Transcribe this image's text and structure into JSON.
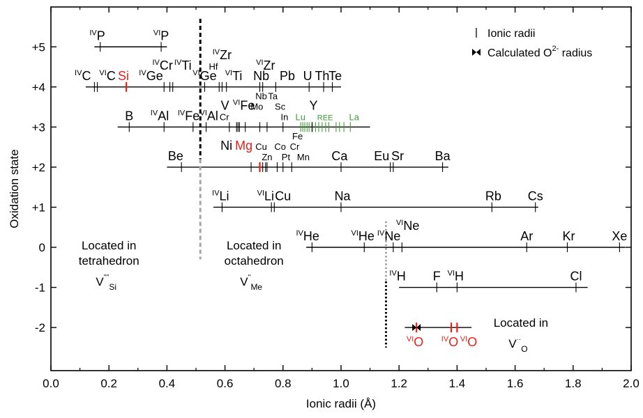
{
  "chart_data": {
    "type": "scatter",
    "xlabel": "Ionic radii (Å)",
    "ylabel": "Oxidation state",
    "xlim": [
      0.0,
      2.0
    ],
    "ylim": [
      -2.95,
      6.0
    ],
    "x_ticks": [
      0.0,
      0.2,
      0.4,
      0.6,
      0.8,
      1.0,
      1.2,
      1.4,
      1.6,
      1.8,
      2.0
    ],
    "x_tick_labels": [
      "0.0",
      "0.2",
      "0.4",
      "0.6",
      "0.8",
      "1.0",
      "1.2",
      "1.4",
      "1.6",
      "1.8",
      "2.0"
    ],
    "y_ticks": [
      5,
      4,
      3,
      2,
      1,
      0,
      -1,
      -2
    ],
    "y_tick_labels": [
      "+5",
      "+4",
      "+3",
      "+2",
      "+1",
      "0",
      "-1",
      "-2"
    ],
    "colors": {
      "black": "#000000",
      "red": "#e8201a",
      "green": "#3f9e38",
      "gray": "#a6a6a6"
    },
    "legend": {
      "position": "top-right",
      "items": [
        {
          "marker": "tick",
          "label": "Ionic radii"
        },
        {
          "marker": "bowtie",
          "label_main": "Calculated O",
          "label_sup": "2-",
          "label_end": " radius"
        }
      ]
    },
    "levels": [
      {
        "state": 5,
        "range": [
          0.15,
          0.4
        ]
      },
      {
        "state": 4,
        "range": [
          0.12,
          1.0
        ]
      },
      {
        "state": 3,
        "range": [
          0.23,
          1.1
        ]
      },
      {
        "state": 2,
        "range": [
          0.4,
          1.37
        ]
      },
      {
        "state": 1,
        "range": [
          0.56,
          1.68
        ]
      },
      {
        "state": 0,
        "range": [
          0.88,
          1.98
        ]
      },
      {
        "state": -1,
        "range": [
          1.2,
          1.85
        ]
      },
      {
        "state": -2,
        "range": [
          1.22,
          1.45
        ]
      }
    ],
    "radii": [
      {
        "state": 5,
        "r": 0.17
      },
      {
        "state": 5,
        "r": 0.38
      },
      {
        "state": 4,
        "r": 0.15
      },
      {
        "state": 4,
        "r": 0.16
      },
      {
        "state": 4,
        "r": 0.26,
        "color": "red"
      },
      {
        "state": 4,
        "r": 0.39
      },
      {
        "state": 4,
        "r": 0.41
      },
      {
        "state": 4,
        "r": 0.42
      },
      {
        "state": 4,
        "r": 0.53
      },
      {
        "state": 4,
        "r": 0.58
      },
      {
        "state": 4,
        "r": 0.59
      },
      {
        "state": 4,
        "r": 0.605
      },
      {
        "state": 4,
        "r": 0.72
      },
      {
        "state": 4,
        "r": 0.73
      },
      {
        "state": 4,
        "r": 0.775
      },
      {
        "state": 4,
        "r": 0.89
      },
      {
        "state": 4,
        "r": 0.94
      },
      {
        "state": 4,
        "r": 0.97
      },
      {
        "state": 3,
        "r": 0.27
      },
      {
        "state": 3,
        "r": 0.39
      },
      {
        "state": 3,
        "r": 0.49
      },
      {
        "state": 3,
        "r": 0.535
      },
      {
        "state": 3,
        "r": 0.615
      },
      {
        "state": 3,
        "r": 0.64
      },
      {
        "state": 3,
        "r": 0.645
      },
      {
        "state": 3,
        "r": 0.65
      },
      {
        "state": 3,
        "r": 0.67
      },
      {
        "state": 3,
        "r": 0.72
      },
      {
        "state": 3,
        "r": 0.745
      },
      {
        "state": 3,
        "r": 0.8
      },
      {
        "state": 3,
        "r": 0.861,
        "color": "green"
      },
      {
        "state": 3,
        "r": 0.868,
        "color": "green"
      },
      {
        "state": 3,
        "r": 0.875,
        "color": "green"
      },
      {
        "state": 3,
        "r": 0.883,
        "color": "green"
      },
      {
        "state": 3,
        "r": 0.89,
        "color": "green"
      },
      {
        "state": 3,
        "r": 0.901,
        "color": "green"
      },
      {
        "state": 3,
        "r": 0.912,
        "color": "green"
      },
      {
        "state": 3,
        "r": 0.923,
        "color": "green"
      },
      {
        "state": 3,
        "r": 0.935,
        "color": "green"
      },
      {
        "state": 3,
        "r": 0.947,
        "color": "green"
      },
      {
        "state": 3,
        "r": 0.958,
        "color": "green"
      },
      {
        "state": 3,
        "r": 0.983,
        "color": "green"
      },
      {
        "state": 3,
        "r": 0.995,
        "color": "green"
      },
      {
        "state": 3,
        "r": 1.01,
        "color": "green"
      },
      {
        "state": 3,
        "r": 1.032,
        "color": "green"
      },
      {
        "state": 3,
        "r": 0.9
      },
      {
        "state": 2,
        "r": 0.45
      },
      {
        "state": 2,
        "r": 0.69
      },
      {
        "state": 2,
        "r": 0.72,
        "color": "red"
      },
      {
        "state": 2,
        "r": 0.73
      },
      {
        "state": 2,
        "r": 0.74
      },
      {
        "state": 2,
        "r": 0.745
      },
      {
        "state": 2,
        "r": 0.78
      },
      {
        "state": 2,
        "r": 0.8
      },
      {
        "state": 2,
        "r": 0.83
      },
      {
        "state": 2,
        "r": 1.0
      },
      {
        "state": 2,
        "r": 1.17
      },
      {
        "state": 2,
        "r": 1.18
      },
      {
        "state": 2,
        "r": 1.35
      },
      {
        "state": 1,
        "r": 0.59
      },
      {
        "state": 1,
        "r": 0.76
      },
      {
        "state": 1,
        "r": 0.77
      },
      {
        "state": 1,
        "r": 1.0
      },
      {
        "state": 1,
        "r": 1.52
      },
      {
        "state": 1,
        "r": 1.67
      },
      {
        "state": 0,
        "r": 0.9
      },
      {
        "state": 0,
        "r": 1.08
      },
      {
        "state": 0,
        "r": 1.18
      },
      {
        "state": 0,
        "r": 1.21
      },
      {
        "state": 0,
        "r": 1.64
      },
      {
        "state": 0,
        "r": 1.78
      },
      {
        "state": 0,
        "r": 1.96
      },
      {
        "state": -1,
        "r": 1.33
      },
      {
        "state": -1,
        "r": 1.4
      },
      {
        "state": -1,
        "r": 1.81
      },
      {
        "state": -2,
        "r": 1.26,
        "color": "red"
      },
      {
        "state": -2,
        "r": 1.38,
        "color": "red"
      },
      {
        "state": -2,
        "r": 1.4,
        "color": "red"
      }
    ],
    "calculated_o2_radius": {
      "state": -2,
      "r": 1.26
    },
    "boundaries": [
      {
        "x": 0.515,
        "y_top": 5.7,
        "y_bottom": -0.3,
        "color_top": "black",
        "color_bottom": "gray",
        "split": 2.2,
        "style": "dashed"
      },
      {
        "x": 1.155,
        "y_top": 0.65,
        "y_bottom": -2.5,
        "color_top": "gray",
        "color_bottom": "black",
        "split": -0.85,
        "style": "dotted"
      }
    ],
    "element_labels": [
      {
        "state": 5,
        "r": 0.16,
        "sup": "IV",
        "text": "P"
      },
      {
        "state": 5,
        "r": 0.38,
        "sup": "VI",
        "text": "P"
      },
      {
        "state": 4,
        "r": 0.11,
        "sup": "IV",
        "text": "C"
      },
      {
        "state": 4,
        "r": 0.195,
        "sup": "VI",
        "text": "C"
      },
      {
        "state": 4,
        "r": 0.25,
        "text": "Si",
        "color": "red"
      },
      {
        "state": 4,
        "r": 0.345,
        "sup": "IV",
        "text": "Ge"
      },
      {
        "state": 4,
        "r": 0.385,
        "sup": "IV",
        "text": "Cr",
        "tier": 1
      },
      {
        "state": 4,
        "r": 0.455,
        "sup": "IV",
        "text": "Ti",
        "tier": 1
      },
      {
        "state": 4,
        "r": 0.53,
        "sup": "VI",
        "text": "Ge"
      },
      {
        "state": 4,
        "r": 0.59,
        "sup": "IV",
        "text": "Zr",
        "tier": 2
      },
      {
        "state": 4,
        "r": 0.56,
        "text": "Hf",
        "small": true,
        "tier": 1
      },
      {
        "state": 4,
        "r": 0.63,
        "sup": "VI",
        "text": "Ti"
      },
      {
        "state": 4,
        "r": 0.725,
        "text": "Nb"
      },
      {
        "state": 4,
        "r": 0.74,
        "sup": "VI",
        "text": "Zr",
        "tier": 1
      },
      {
        "state": 4,
        "r": 0.815,
        "text": "Pb"
      },
      {
        "state": 4,
        "r": 0.885,
        "text": "U"
      },
      {
        "state": 4,
        "r": 0.935,
        "text": "Th"
      },
      {
        "state": 4,
        "r": 0.98,
        "text": "Te"
      },
      {
        "state": 3,
        "r": 0.27,
        "text": "B"
      },
      {
        "state": 3,
        "r": 0.375,
        "sup": "IV",
        "text": "Al"
      },
      {
        "state": 3,
        "r": 0.475,
        "sup": "IV",
        "text": "Fe"
      },
      {
        "state": 3,
        "r": 0.545,
        "sup": "VI",
        "text": "Al"
      },
      {
        "state": 3,
        "r": 0.598,
        "text": "Cr",
        "small": true
      },
      {
        "state": 3,
        "r": 0.6,
        "text": "V",
        "tier": 1
      },
      {
        "state": 3,
        "r": 0.665,
        "sup": "VI",
        "text": "Fe",
        "tier": 1
      },
      {
        "state": 3,
        "r": 0.71,
        "text": "Mo",
        "small": true,
        "tier": 1
      },
      {
        "state": 3,
        "r": 0.725,
        "text": "Nb",
        "small": true,
        "tier": 2
      },
      {
        "state": 3,
        "r": 0.765,
        "text": "Ta",
        "small": true,
        "tier": 2
      },
      {
        "state": 3,
        "r": 0.79,
        "text": "Sc",
        "small": true,
        "tier": 1
      },
      {
        "state": 3,
        "r": 0.805,
        "text": "In",
        "small": true
      },
      {
        "state": 3,
        "r": 0.86,
        "text": "Lu",
        "small": true,
        "color": "green"
      },
      {
        "state": 3,
        "r": 0.905,
        "text": "Y",
        "tier": 1
      },
      {
        "state": 3,
        "r": 0.945,
        "text": "REE",
        "smaller": true,
        "color": "green"
      },
      {
        "state": 3,
        "r": 1.045,
        "text": "La",
        "small": true,
        "color": "green"
      },
      {
        "state": 2,
        "r": 0.43,
        "text": "Be"
      },
      {
        "state": 2,
        "r": 0.605,
        "text": "Ni",
        "tier": 1
      },
      {
        "state": 2,
        "r": 0.665,
        "text": "Mg",
        "color": "red",
        "tier": 1
      },
      {
        "state": 2,
        "r": 0.725,
        "text": "Cu",
        "small": true,
        "tier": 1
      },
      {
        "state": 2,
        "r": 0.745,
        "text": "Zn",
        "small": true
      },
      {
        "state": 2,
        "r": 0.79,
        "text": "Co",
        "small": true,
        "tier": 1
      },
      {
        "state": 2,
        "r": 0.85,
        "text": "Fe",
        "small": true,
        "tier": 2
      },
      {
        "state": 2,
        "r": 0.84,
        "text": "Cr",
        "small": true,
        "tier": 1
      },
      {
        "state": 2,
        "r": 0.81,
        "text": "Pt",
        "small": true
      },
      {
        "state": 2,
        "r": 0.87,
        "text": "Mn",
        "small": true
      },
      {
        "state": 2,
        "r": 0.995,
        "text": "Ca"
      },
      {
        "state": 2,
        "r": 1.14,
        "text": "Eu"
      },
      {
        "state": 2,
        "r": 1.195,
        "text": "Sr"
      },
      {
        "state": 2,
        "r": 1.35,
        "text": "Ba"
      },
      {
        "state": 1,
        "r": 0.585,
        "sup": "IV",
        "text": "Li"
      },
      {
        "state": 1,
        "r": 0.74,
        "sup": "VI",
        "text": "Li"
      },
      {
        "state": 1,
        "r": 0.8,
        "text": "Cu"
      },
      {
        "state": 1,
        "r": 1.005,
        "text": "Na"
      },
      {
        "state": 1,
        "r": 1.525,
        "text": "Rb"
      },
      {
        "state": 1,
        "r": 1.67,
        "text": "Cs"
      },
      {
        "state": 0,
        "r": 0.885,
        "sup": "IV",
        "text": "He"
      },
      {
        "state": 0,
        "r": 1.075,
        "sup": "VI",
        "text": "He"
      },
      {
        "state": 0,
        "r": 1.165,
        "sup": "IV",
        "text": "Ne"
      },
      {
        "state": 0,
        "r": 1.23,
        "sup": "VI",
        "text": "Ne",
        "tier": 1
      },
      {
        "state": 0,
        "r": 1.64,
        "text": "Ar"
      },
      {
        "state": 0,
        "r": 1.785,
        "text": "Kr"
      },
      {
        "state": 0,
        "r": 1.96,
        "text": "Xe"
      },
      {
        "state": -1,
        "r": 1.195,
        "sup": "IV",
        "text": "H"
      },
      {
        "state": -1,
        "r": 1.33,
        "text": "F"
      },
      {
        "state": -1,
        "r": 1.395,
        "sup": "VI",
        "text": "H"
      },
      {
        "state": -1,
        "r": 1.81,
        "text": "Cl"
      },
      {
        "state": -2,
        "r": 1.255,
        "sup": "VI",
        "text": "O",
        "color": "red",
        "below": true
      },
      {
        "state": -2,
        "r": 1.375,
        "sup": "IV",
        "text": "O",
        "color": "red",
        "below": true
      },
      {
        "state": -2,
        "r": 1.44,
        "sup": "VI",
        "text": "O",
        "color": "red",
        "below": true
      }
    ],
    "annotations": [
      {
        "lines": [
          "Located in",
          "tetrahedron"
        ],
        "symbol": "V",
        "sup": "''''",
        "sub": "Si",
        "x": 0.2,
        "y": -0.05
      },
      {
        "lines": [
          "Located in",
          "octahedron"
        ],
        "symbol": "V",
        "sup": "''",
        "sub": "Me",
        "x": 0.7,
        "y": -0.05
      },
      {
        "lines": [
          "Located in"
        ],
        "symbol": "V",
        "sup": "··",
        "sub": "O",
        "x": 1.62,
        "y": -1.98
      }
    ]
  }
}
